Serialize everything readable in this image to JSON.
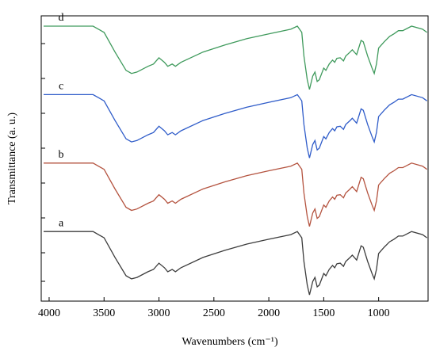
{
  "chart_data": {
    "type": "line",
    "x_label": "Wavenumbers (cm⁻¹)",
    "y_label": "Transmittance (a. u.)",
    "x": [
      4050,
      3800,
      3600,
      3500,
      3400,
      3300,
      3250,
      3200,
      3100,
      3050,
      3000,
      2950,
      2920,
      2880,
      2850,
      2800,
      2600,
      2400,
      2200,
      2000,
      1800,
      1740,
      1700,
      1680,
      1650,
      1630,
      1600,
      1580,
      1560,
      1540,
      1500,
      1480,
      1450,
      1420,
      1400,
      1380,
      1350,
      1320,
      1300,
      1260,
      1240,
      1200,
      1160,
      1140,
      1100,
      1060,
      1040,
      1020,
      1000,
      950,
      900,
      860,
      820,
      780,
      700,
      600,
      560
    ],
    "series": [
      {
        "name": "a",
        "color": "#3c3c3c",
        "values": [
          24.4,
          24.4,
          24.4,
          22.2,
          15.3,
          8.9,
          7.8,
          8.3,
          10.3,
          11.1,
          13.3,
          11.7,
          10.3,
          11.1,
          10.3,
          11.7,
          15.3,
          17.8,
          20,
          21.7,
          23.3,
          24.4,
          22.2,
          13.9,
          5.6,
          2.2,
          6.9,
          8.3,
          5,
          5.6,
          9.7,
          8.9,
          11.1,
          12.5,
          11.7,
          13.1,
          13.3,
          12.2,
          13.9,
          15.3,
          16.1,
          14.4,
          19.4,
          18.9,
          13.9,
          9.7,
          7.8,
          11.1,
          16.7,
          18.9,
          20.8,
          21.7,
          22.8,
          22.8,
          24.4,
          23.3,
          22.2
        ]
      },
      {
        "name": "b",
        "color": "#b4533f",
        "values": [
          48.4,
          48.4,
          48.4,
          46.2,
          39.3,
          32.9,
          31.8,
          32.3,
          34.3,
          35.1,
          37.3,
          35.7,
          34.3,
          35.1,
          34.3,
          35.7,
          39.3,
          41.8,
          44,
          45.7,
          47.3,
          48.4,
          46.2,
          37.9,
          29.6,
          26.2,
          30.9,
          32.3,
          29,
          29.6,
          33.7,
          32.9,
          35.1,
          36.5,
          35.7,
          37.1,
          37.3,
          36.2,
          37.9,
          39.3,
          40.1,
          38.4,
          43.4,
          42.9,
          37.9,
          33.7,
          31.8,
          35.1,
          40.7,
          42.9,
          44.8,
          45.7,
          46.8,
          46.8,
          48.4,
          47.3,
          46.2
        ]
      },
      {
        "name": "c",
        "color": "#2f5cc9",
        "values": [
          72.4,
          72.4,
          72.4,
          70.2,
          63.3,
          56.9,
          55.8,
          56.3,
          58.3,
          59.1,
          61.3,
          59.7,
          58.3,
          59.1,
          58.3,
          59.7,
          63.3,
          65.8,
          68,
          69.7,
          71.3,
          72.4,
          70.2,
          61.9,
          53.6,
          50.2,
          54.9,
          56.3,
          53,
          53.6,
          57.7,
          56.9,
          59.1,
          60.5,
          59.7,
          61.1,
          61.3,
          60.2,
          61.9,
          63.3,
          64.1,
          62.4,
          67.4,
          66.9,
          61.9,
          57.7,
          55.8,
          59.1,
          64.7,
          66.9,
          68.8,
          69.7,
          70.8,
          70.8,
          72.4,
          71.3,
          70.2
        ]
      },
      {
        "name": "d",
        "color": "#3f9a5c",
        "values": [
          96.4,
          96.4,
          96.4,
          94.2,
          87.3,
          80.9,
          79.8,
          80.3,
          82.3,
          83.1,
          85.3,
          83.7,
          82.3,
          83.1,
          82.3,
          83.7,
          87.3,
          89.8,
          92,
          93.7,
          95.3,
          96.4,
          94.2,
          85.9,
          77.6,
          74.2,
          78.9,
          80.3,
          77,
          77.6,
          81.7,
          80.9,
          83.1,
          84.5,
          83.7,
          85.1,
          85.3,
          84.2,
          85.9,
          87.3,
          88.1,
          86.4,
          91.4,
          90.9,
          85.9,
          81.7,
          79.8,
          83.1,
          88.7,
          90.9,
          92.8,
          93.7,
          94.8,
          94.8,
          96.4,
          95.3,
          94.2
        ]
      }
    ],
    "xlim": [
      4072,
      550
    ],
    "xticks": [
      4000,
      3500,
      3000,
      2500,
      2000,
      1500,
      1000
    ],
    "ylim": [
      0,
      100
    ]
  }
}
